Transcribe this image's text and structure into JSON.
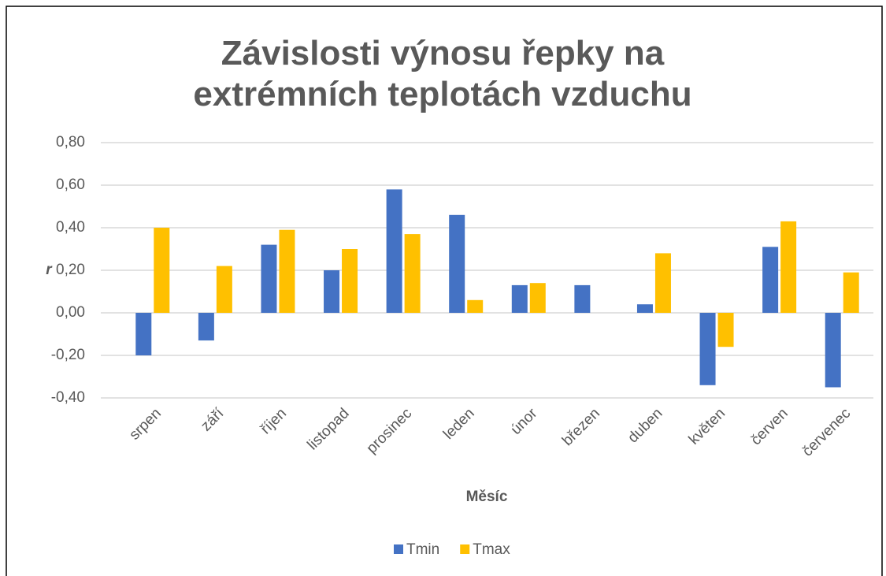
{
  "chart_data": {
    "type": "bar",
    "title": "Závislosti výnosu řepky na extrémních teplotách vzduchu",
    "x_label": "Měsíc",
    "y_label": "r",
    "categories": [
      "srpen",
      "září",
      "říjen",
      "listopad",
      "prosinec",
      "leden",
      "únor",
      "březen",
      "duben",
      "květen",
      "červen",
      "červenec"
    ],
    "series": [
      {
        "name": "Tmin",
        "color": "#4472c4",
        "values": [
          -0.2,
          -0.13,
          0.32,
          0.2,
          0.58,
          0.46,
          0.13,
          0.13,
          0.04,
          -0.34,
          0.31,
          -0.35
        ]
      },
      {
        "name": "Tmax",
        "color": "#ffc000",
        "values": [
          0.4,
          0.22,
          0.39,
          0.3,
          0.37,
          0.06,
          0.14,
          0,
          0.28,
          -0.16,
          0.43,
          0.19
        ]
      }
    ],
    "ylim": [
      -0.4,
      0.8
    ],
    "yticks": [
      {
        "value": -0.4,
        "label": "-0,40"
      },
      {
        "value": -0.2,
        "label": "-0,20"
      },
      {
        "value": 0,
        "label": "0,00"
      },
      {
        "value": 0.2,
        "label": "0,20"
      },
      {
        "value": 0.4,
        "label": "0,40"
      },
      {
        "value": 0.6,
        "label": "0,60"
      },
      {
        "value": 0.8,
        "label": "0,80"
      }
    ],
    "grid": true,
    "legend": "bottom"
  }
}
